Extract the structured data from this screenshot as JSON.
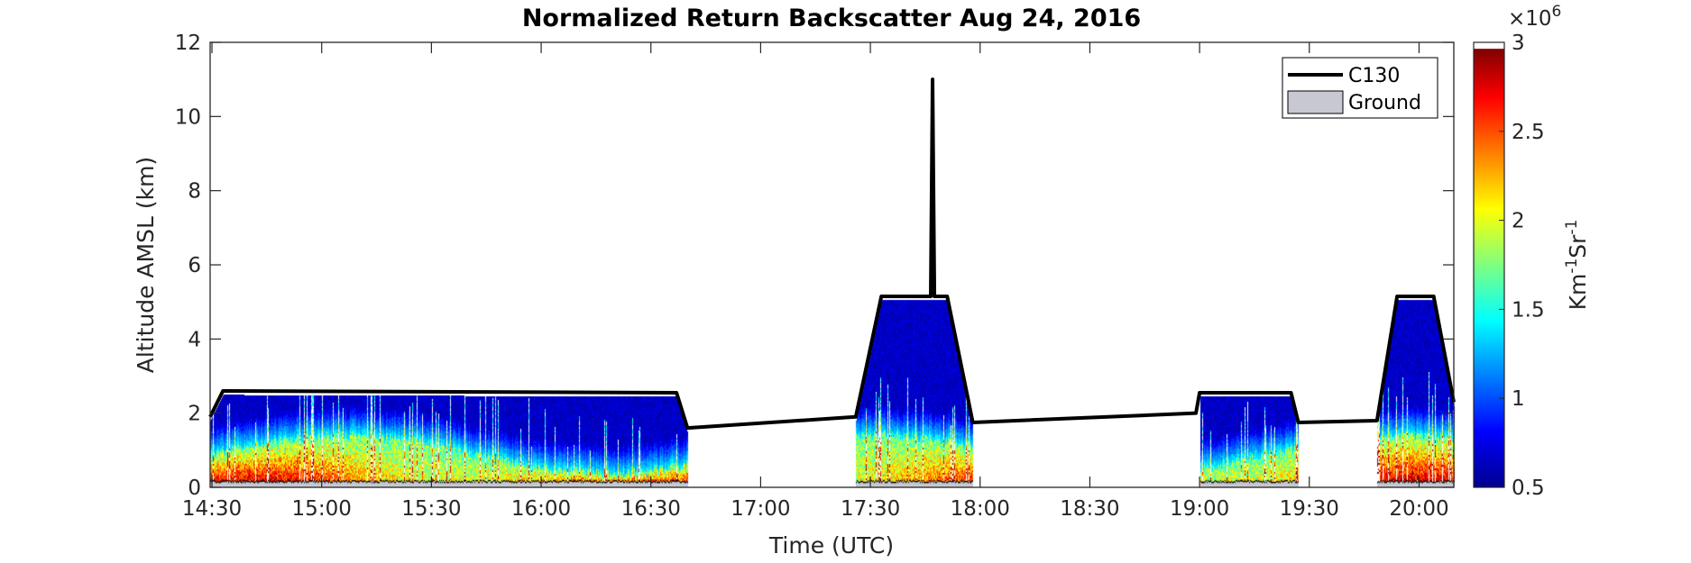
{
  "chart_data": {
    "type": "heatmap",
    "title": "Normalized Return Backscatter Aug 24, 2016",
    "xlabel": "Time (UTC)",
    "ylabel": "Altitude AMSL (km)",
    "xlim_minutes_after_1430": [
      -0.5,
      339.5
    ],
    "ylim": [
      0,
      12
    ],
    "xticks": [
      "14:30",
      "15:00",
      "15:30",
      "16:00",
      "16:30",
      "17:00",
      "17:30",
      "18:00",
      "18:30",
      "19:00",
      "19:30",
      "20:00"
    ],
    "yticks": [
      "0",
      "2",
      "4",
      "6",
      "8",
      "10",
      "12"
    ],
    "colorbar": {
      "label_base": "Km",
      "label_exp1": "-1",
      "label_mid": "Sr",
      "label_exp2": "-1",
      "multiplier_base": "×10",
      "multiplier_exp": "6",
      "range": [
        0.5,
        3
      ],
      "ticks": [
        "0.5",
        "1",
        "1.5",
        "2",
        "2.5",
        "3"
      ],
      "colormap": "jet"
    },
    "legend": {
      "placement": "top-right",
      "items": [
        {
          "label": "C130",
          "color": "#000000",
          "kind": "line"
        },
        {
          "label": "Ground",
          "color": "#c8c8d2",
          "kind": "patch"
        }
      ]
    },
    "c130_track": {
      "minutes_after_1430": [
        -0.5,
        3,
        127,
        130,
        176,
        183,
        196.5,
        197,
        197.5,
        201,
        208,
        269,
        270,
        295,
        297,
        318.5,
        324,
        334,
        339.5
      ],
      "altitude_km": [
        1.9,
        2.6,
        2.55,
        1.6,
        1.9,
        5.15,
        5.15,
        11.0,
        5.15,
        5.15,
        1.75,
        2.0,
        2.55,
        2.55,
        1.75,
        1.8,
        5.15,
        5.15,
        2.3
      ]
    },
    "lidar_segments_minutes_after_1430": [
      [
        -0.5,
        130
      ],
      [
        176,
        208
      ],
      [
        270,
        297
      ],
      [
        318.5,
        339.5
      ]
    ],
    "ground_altitude_km": 0.15
  }
}
